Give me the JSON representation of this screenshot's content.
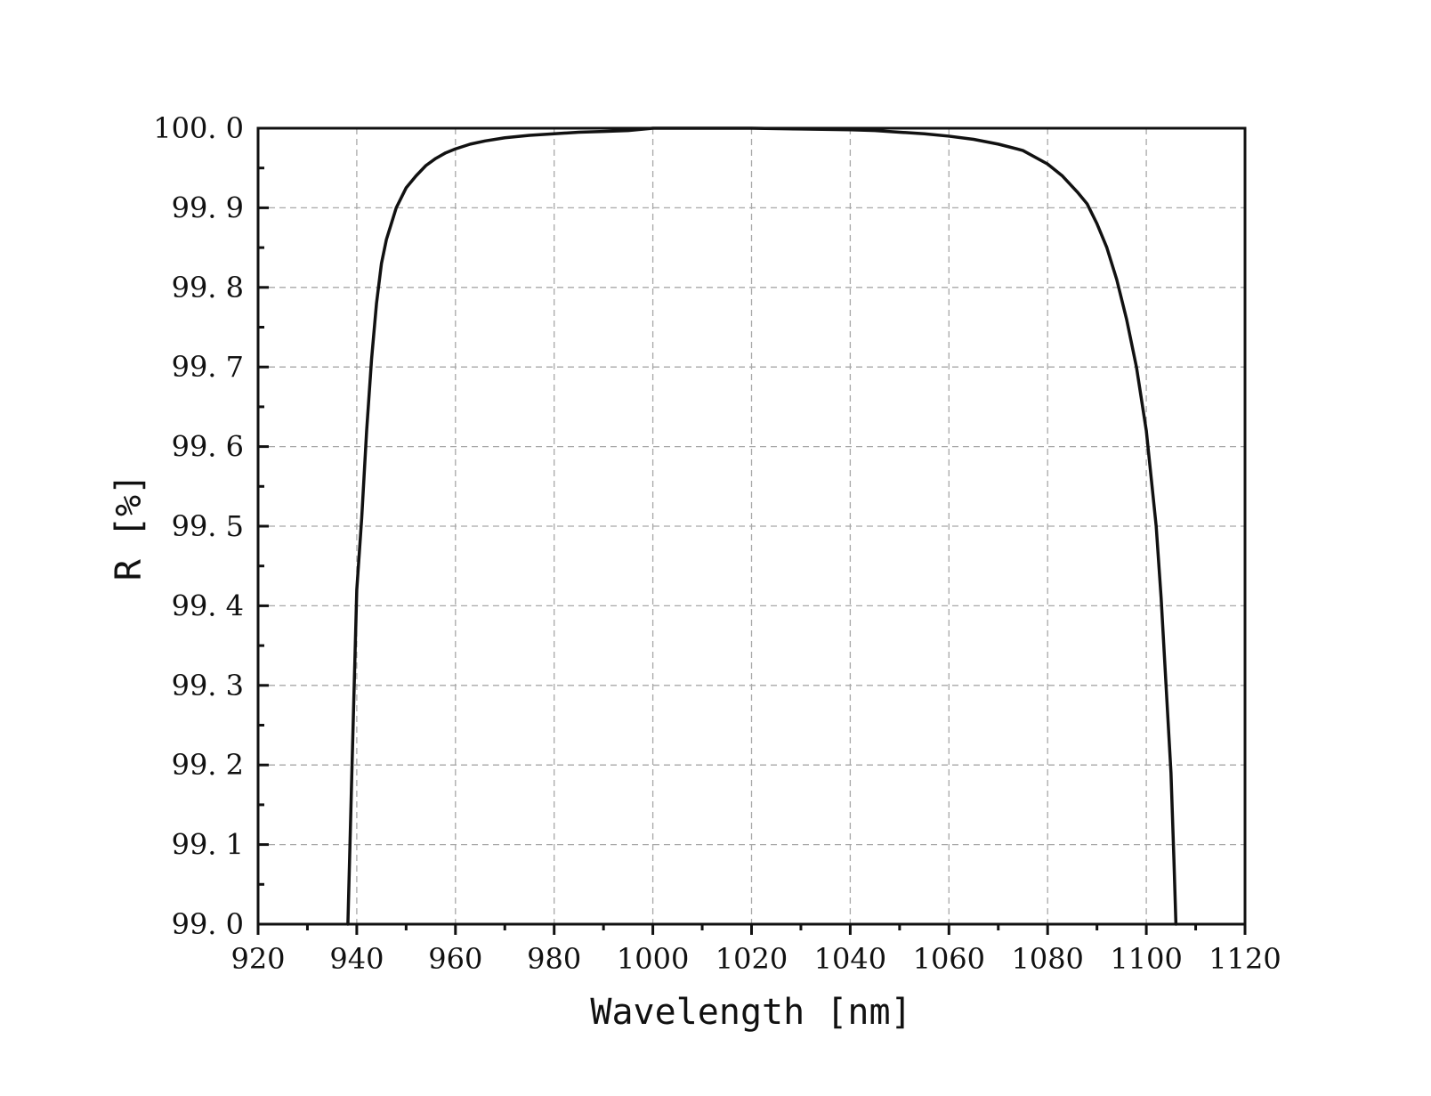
{
  "chart_data": {
    "type": "line",
    "title": "",
    "xlabel": "Wavelength [nm]",
    "ylabel": "R [%]",
    "xlim": [
      920,
      1120
    ],
    "ylim": [
      99.0,
      100.0
    ],
    "x_ticks": [
      920,
      940,
      960,
      980,
      1000,
      1020,
      1040,
      1060,
      1080,
      1100,
      1120
    ],
    "x_tick_labels": [
      "920",
      "940",
      "960",
      "980",
      "1000",
      "1020",
      "1040",
      "1060",
      "1080",
      "1100",
      "1120"
    ],
    "x_minor_step": 10,
    "y_ticks": [
      99.0,
      99.1,
      99.2,
      99.3,
      99.4,
      99.5,
      99.6,
      99.7,
      99.8,
      99.9,
      100.0
    ],
    "y_tick_labels": [
      "99. 0",
      "99. 1",
      "99. 2",
      "99. 3",
      "99. 4",
      "99. 5",
      "99. 6",
      "99. 7",
      "99. 8",
      "99. 9",
      "100. 0"
    ],
    "y_minor_step": 0.05,
    "grid": true,
    "line_color": "#111111",
    "series": [
      {
        "x": [
          938.2,
          939,
          940,
          941,
          942,
          943,
          944,
          945,
          946,
          948,
          950,
          952,
          954,
          956,
          958,
          960,
          963,
          966,
          970,
          975,
          980,
          985,
          990,
          995,
          1000,
          1010,
          1020,
          1030,
          1040,
          1045,
          1050,
          1055,
          1060,
          1065,
          1070,
          1075,
          1080,
          1083,
          1086,
          1088,
          1090,
          1092,
          1094,
          1096,
          1098,
          1100,
          1101,
          1102,
          1103,
          1104,
          1105,
          1105.6,
          1106.0
        ],
        "y": [
          99.0,
          99.19,
          99.42,
          99.51,
          99.62,
          99.71,
          99.78,
          99.83,
          99.86,
          99.9,
          99.925,
          99.94,
          99.953,
          99.962,
          99.969,
          99.974,
          99.98,
          99.984,
          99.988,
          99.991,
          99.993,
          99.995,
          99.996,
          99.997,
          100.0,
          100.0,
          100.0,
          99.999,
          99.998,
          99.997,
          99.995,
          99.993,
          99.99,
          99.986,
          99.98,
          99.972,
          99.955,
          99.94,
          99.92,
          99.905,
          99.88,
          99.85,
          99.81,
          99.76,
          99.7,
          99.62,
          99.56,
          99.5,
          99.41,
          99.3,
          99.19,
          99.08,
          99.0
        ]
      }
    ]
  }
}
